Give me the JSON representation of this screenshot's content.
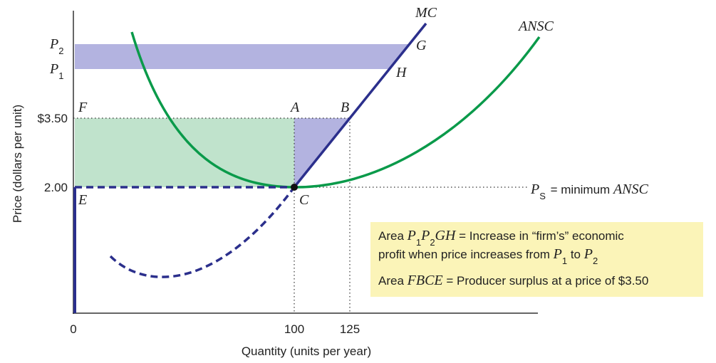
{
  "axes": {
    "y_label": "Price (dollars per unit)",
    "x_label": "Quantity (units per year)",
    "x_ticks": [
      "0",
      "100",
      "125"
    ],
    "y_ticks": [
      "$3.50",
      "2.00"
    ]
  },
  "price_labels": [
    {
      "base": "P",
      "sub": "2"
    },
    {
      "base": "P",
      "sub": "1"
    }
  ],
  "curve_labels": [
    "MC",
    "ANSC"
  ],
  "point_labels": [
    "G",
    "H",
    "F",
    "A",
    "B",
    "C",
    "E"
  ],
  "min_price_label": {
    "base": "P",
    "sub": "S",
    "text": " = minimum ",
    "curve": "ANSC"
  },
  "legend": {
    "lines": [
      [
        "Area ",
        "P",
        "1",
        "P",
        "2",
        "GH",
        " = Increase in “firm’s” economic"
      ],
      [
        "profit when price increases from ",
        "P",
        "1",
        " to ",
        "P",
        "2"
      ],
      [
        "Area ",
        "FBCE",
        " = Producer surplus at a price of $3.50"
      ]
    ]
  }
}
